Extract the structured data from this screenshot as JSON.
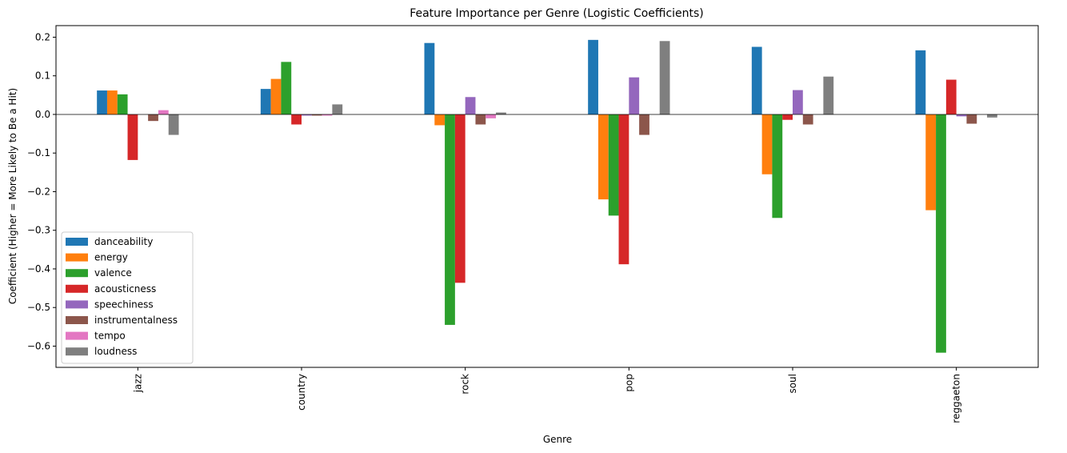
{
  "chart_data": {
    "type": "bar",
    "title": "Feature Importance per Genre (Logistic Coefficients)",
    "xlabel": "Genre",
    "ylabel": "Coefficient (Higher = More Likely to Be a Hit)",
    "ylim": [
      -0.655,
      0.23
    ],
    "yticks": [
      0.2,
      0.1,
      0.0,
      -0.1,
      -0.2,
      -0.3,
      -0.4,
      -0.5,
      -0.6
    ],
    "ytick_labels": [
      "0.2",
      "0.1",
      "0.0",
      "−0.1",
      "−0.2",
      "−0.3",
      "−0.4",
      "−0.5",
      "−0.6"
    ],
    "grid": false,
    "zero_line": true,
    "legend_position": "lower-left",
    "categories": [
      "jazz",
      "country",
      "rock",
      "pop",
      "soul",
      "reggaeton"
    ],
    "series": [
      {
        "name": "danceability",
        "color": "#1f77b4",
        "values": [
          0.062,
          0.066,
          0.185,
          0.193,
          0.175,
          0.166
        ]
      },
      {
        "name": "energy",
        "color": "#ff7f0e",
        "values": [
          0.062,
          0.092,
          -0.028,
          -0.22,
          -0.155,
          -0.248
        ]
      },
      {
        "name": "valence",
        "color": "#2ca02c",
        "values": [
          0.052,
          0.136,
          -0.545,
          -0.262,
          -0.268,
          -0.617
        ]
      },
      {
        "name": "acousticness",
        "color": "#d62728",
        "values": [
          -0.118,
          -0.026,
          -0.436,
          -0.388,
          -0.014,
          0.09
        ]
      },
      {
        "name": "speechiness",
        "color": "#9467bd",
        "values": [
          0.0,
          -0.003,
          0.045,
          0.096,
          0.063,
          -0.005
        ]
      },
      {
        "name": "instrumentalness",
        "color": "#8c564b",
        "values": [
          -0.017,
          -0.003,
          -0.026,
          -0.053,
          -0.026,
          -0.024
        ]
      },
      {
        "name": "tempo",
        "color": "#e377c2",
        "values": [
          0.011,
          -0.003,
          -0.01,
          0.0,
          0.0,
          0.0
        ]
      },
      {
        "name": "loudness",
        "color": "#7f7f7f",
        "values": [
          -0.053,
          0.026,
          0.005,
          0.19,
          0.098,
          -0.008
        ]
      }
    ]
  }
}
